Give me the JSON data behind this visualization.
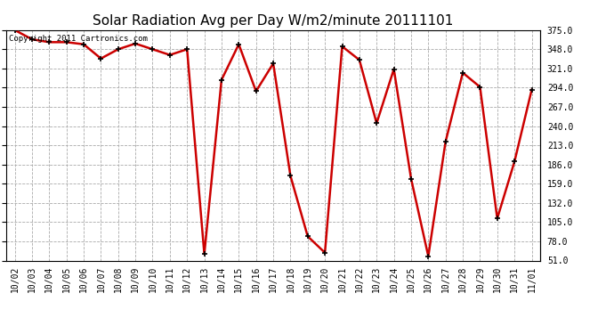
{
  "title": "Solar Radiation Avg per Day W/m2/minute 20111101",
  "copyright_text": "Copyright 2011 Cartronics.com",
  "x_labels": [
    "10/02",
    "10/03",
    "10/04",
    "10/05",
    "10/06",
    "10/07",
    "10/08",
    "10/09",
    "10/10",
    "10/11",
    "10/12",
    "10/13",
    "10/14",
    "10/15",
    "10/16",
    "10/17",
    "10/18",
    "10/19",
    "10/20",
    "10/21",
    "10/22",
    "10/23",
    "10/24",
    "10/25",
    "10/26",
    "10/27",
    "10/28",
    "10/29",
    "10/30",
    "10/31",
    "11/01"
  ],
  "y_values": [
    375,
    362,
    358,
    358,
    355,
    335,
    348,
    356,
    348,
    340,
    348,
    60,
    305,
    355,
    289,
    328,
    170,
    85,
    62,
    352,
    333,
    244,
    320,
    166,
    57,
    218,
    315,
    295,
    110,
    190,
    291
  ],
  "line_color": "#cc0000",
  "marker_color": "#000000",
  "background_color": "#ffffff",
  "grid_color": "#aaaaaa",
  "ylim": [
    51.0,
    375.0
  ],
  "ytick_labels": [
    "51.0",
    "78.0",
    "105.0",
    "132.0",
    "159.0",
    "186.0",
    "213.0",
    "240.0",
    "267.0",
    "294.0",
    "321.0",
    "348.0",
    "375.0"
  ],
  "ytick_values": [
    51.0,
    78.0,
    105.0,
    132.0,
    159.0,
    186.0,
    213.0,
    240.0,
    267.0,
    294.0,
    321.0,
    348.0,
    375.0
  ],
  "title_fontsize": 11,
  "tick_fontsize": 7,
  "copyright_fontsize": 6.5
}
